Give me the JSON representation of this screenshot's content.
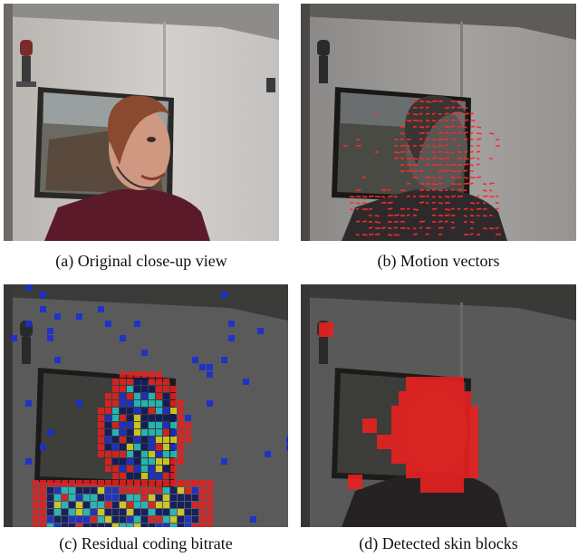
{
  "panels": [
    {
      "id": "a",
      "caption": "(a) Original close-up view"
    },
    {
      "id": "b",
      "caption": "(b) Motion vectors"
    },
    {
      "id": "c",
      "caption": "(c) Residual coding bitrate"
    },
    {
      "id": "d",
      "caption": "(d) Detected skin blocks"
    }
  ],
  "colors": {
    "motion_vector": "#ff2a2a",
    "skin_block": "#e82020",
    "heatmap_low": "#1a2fd0",
    "heatmap_mid": "#20c0c0",
    "heatmap_high": "#e02020"
  }
}
